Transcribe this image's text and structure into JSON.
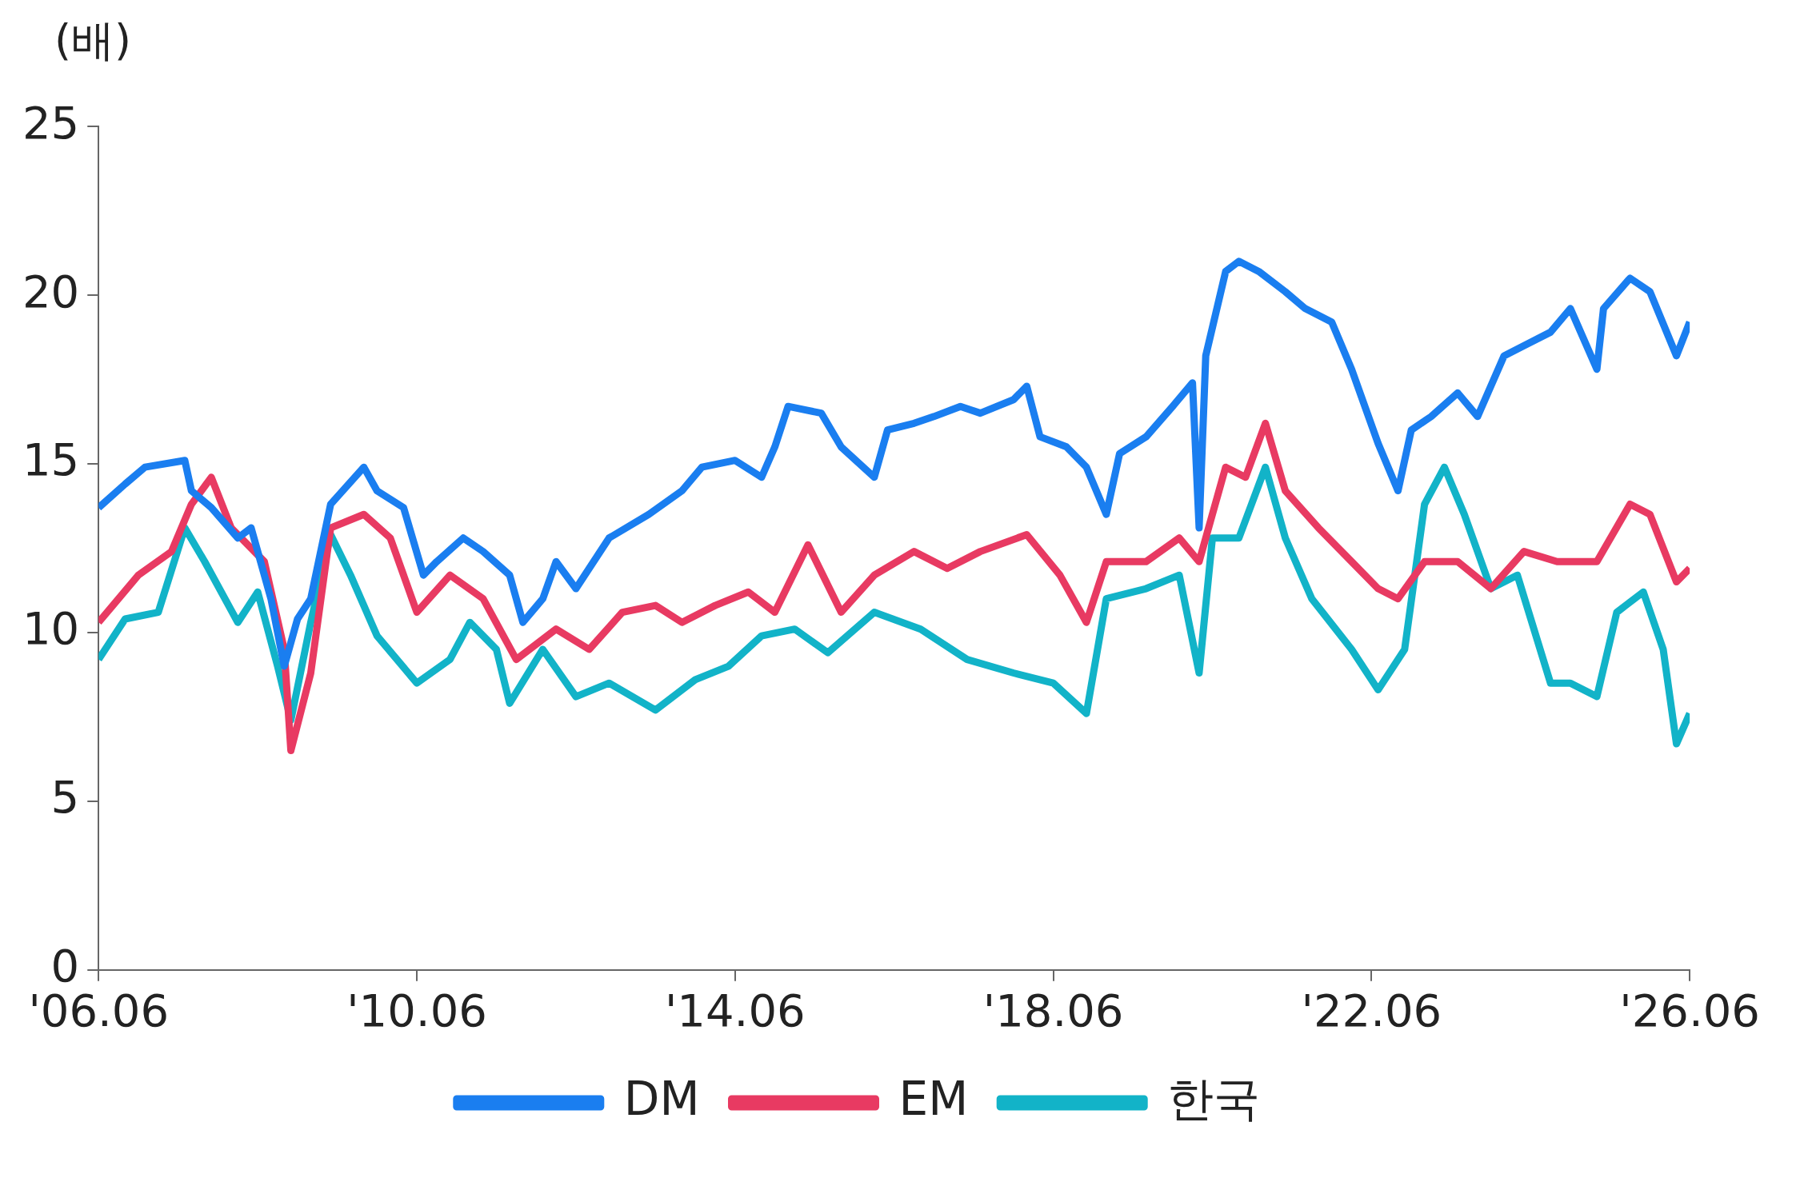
{
  "chart_data": {
    "type": "line",
    "ylabel": "(배)",
    "legend": "bottom",
    "grid": false,
    "line_style": "solid",
    "marker": "none",
    "xlim": [
      "2006-06",
      "2026-06"
    ],
    "xticks": [
      {
        "value": "2006-06",
        "label": "'06.06"
      },
      {
        "value": "2010-06",
        "label": "'10.06"
      },
      {
        "value": "2014-06",
        "label": "'14.06"
      },
      {
        "value": "2018-06",
        "label": "'18.06"
      },
      {
        "value": "2022-06",
        "label": "'22.06"
      },
      {
        "value": "2026-06",
        "label": "'26.06"
      }
    ],
    "ylim": [
      0,
      25
    ],
    "yticks": [
      0,
      5,
      10,
      15,
      20,
      25
    ],
    "series": [
      {
        "name": "DM",
        "color": "#1a7ef0",
        "x": [
          "2006-06",
          "2006-10",
          "2007-01",
          "2007-07",
          "2007-08",
          "2007-11",
          "2008-03",
          "2008-05",
          "2008-08",
          "2008-10",
          "2008-12",
          "2009-02",
          "2009-05",
          "2009-10",
          "2009-12",
          "2010-04",
          "2010-07",
          "2010-09",
          "2011-01",
          "2011-04",
          "2011-08",
          "2011-10",
          "2012-01",
          "2012-03",
          "2012-06",
          "2012-11",
          "2013-05",
          "2013-10",
          "2014-01",
          "2014-06",
          "2014-10",
          "2014-12",
          "2015-02",
          "2015-07",
          "2015-10",
          "2016-03",
          "2016-05",
          "2016-09",
          "2016-12",
          "2017-04",
          "2017-07",
          "2017-12",
          "2018-02",
          "2018-04",
          "2018-08",
          "2018-11",
          "2019-02",
          "2019-04",
          "2019-08",
          "2019-12",
          "2020-03",
          "2020-04",
          "2020-05",
          "2020-08",
          "2020-10",
          "2021-01",
          "2021-05",
          "2021-08",
          "2021-12",
          "2022-03",
          "2022-07",
          "2022-10",
          "2022-12",
          "2023-03",
          "2023-07",
          "2023-10",
          "2024-02",
          "2024-05",
          "2024-09",
          "2024-12",
          "2025-04",
          "2025-05",
          "2025-09",
          "2025-12",
          "2026-04",
          "2026-06"
        ],
        "values": [
          13.7,
          14.4,
          14.9,
          15.1,
          14.2,
          13.7,
          12.8,
          13.1,
          11.0,
          9.0,
          10.4,
          11.0,
          13.8,
          14.9,
          14.2,
          13.7,
          11.7,
          12.1,
          12.8,
          12.4,
          11.7,
          10.3,
          11.0,
          12.1,
          11.3,
          12.8,
          13.5,
          14.2,
          14.9,
          15.1,
          14.6,
          15.5,
          16.7,
          16.5,
          15.5,
          14.6,
          16.0,
          16.2,
          16.4,
          16.7,
          16.5,
          16.9,
          17.3,
          15.8,
          15.5,
          14.9,
          13.5,
          15.3,
          15.8,
          16.7,
          17.4,
          13.1,
          18.2,
          20.7,
          21.0,
          20.7,
          20.1,
          19.6,
          19.2,
          17.8,
          15.6,
          14.2,
          16.0,
          16.4,
          17.1,
          16.4,
          18.2,
          18.5,
          18.9,
          19.6,
          17.8,
          19.6,
          20.5,
          20.1,
          18.2,
          19.2
        ]
      },
      {
        "name": "EM",
        "color": "#e83a62",
        "x": [
          "2006-06",
          "2006-12",
          "2007-05",
          "2007-08",
          "2007-11",
          "2008-02",
          "2008-07",
          "2008-10",
          "2008-11",
          "2009-02",
          "2009-05",
          "2009-10",
          "2010-02",
          "2010-06",
          "2010-11",
          "2011-04",
          "2011-09",
          "2012-03",
          "2012-08",
          "2013-01",
          "2013-06",
          "2013-10",
          "2014-03",
          "2014-08",
          "2014-12",
          "2015-05",
          "2015-10",
          "2016-03",
          "2016-09",
          "2017-02",
          "2017-07",
          "2018-02",
          "2018-07",
          "2018-11",
          "2019-02",
          "2019-08",
          "2020-01",
          "2020-04",
          "2020-08",
          "2020-11",
          "2021-02",
          "2021-05",
          "2021-10",
          "2022-03",
          "2022-07",
          "2022-10",
          "2023-02",
          "2023-07",
          "2023-12",
          "2024-05",
          "2024-10",
          "2025-04",
          "2025-09",
          "2025-12",
          "2026-04",
          "2026-06"
        ],
        "values": [
          10.3,
          11.7,
          12.4,
          13.8,
          14.6,
          13.1,
          12.1,
          9.5,
          6.5,
          8.8,
          13.1,
          13.5,
          12.8,
          10.6,
          11.7,
          11.0,
          9.2,
          10.1,
          9.5,
          10.6,
          10.8,
          10.3,
          10.8,
          11.2,
          10.6,
          12.6,
          10.6,
          11.7,
          12.4,
          11.9,
          12.4,
          12.9,
          11.7,
          10.3,
          12.1,
          12.1,
          12.8,
          12.1,
          14.9,
          14.6,
          16.2,
          14.2,
          13.1,
          12.1,
          11.3,
          11.0,
          12.1,
          12.1,
          11.3,
          12.4,
          12.1,
          12.1,
          13.8,
          13.5,
          11.5,
          11.9
        ]
      },
      {
        "name": "한국",
        "color": "#12b3c8",
        "x": [
          "2006-06",
          "2006-10",
          "2007-03",
          "2007-07",
          "2007-10",
          "2008-03",
          "2008-06",
          "2008-09",
          "2008-11",
          "2009-02",
          "2009-05",
          "2009-08",
          "2009-12",
          "2010-06",
          "2010-11",
          "2011-02",
          "2011-06",
          "2011-08",
          "2012-01",
          "2012-06",
          "2012-11",
          "2013-06",
          "2013-12",
          "2014-05",
          "2014-10",
          "2015-03",
          "2015-08",
          "2016-03",
          "2016-10",
          "2017-05",
          "2017-12",
          "2018-06",
          "2018-11",
          "2019-02",
          "2019-08",
          "2020-01",
          "2020-04",
          "2020-06",
          "2020-10",
          "2021-02",
          "2021-05",
          "2021-09",
          "2022-03",
          "2022-07",
          "2022-11",
          "2023-02",
          "2023-05",
          "2023-08",
          "2023-12",
          "2024-04",
          "2024-09",
          "2024-12",
          "2025-04",
          "2025-07",
          "2025-11",
          "2026-02",
          "2026-04",
          "2026-06"
        ],
        "values": [
          9.2,
          10.4,
          10.6,
          13.1,
          12.1,
          10.3,
          11.2,
          9.0,
          7.4,
          10.3,
          12.9,
          11.7,
          9.9,
          8.5,
          9.2,
          10.3,
          9.5,
          7.9,
          9.5,
          8.1,
          8.5,
          7.7,
          8.6,
          9.0,
          9.9,
          10.1,
          9.4,
          10.6,
          10.1,
          9.2,
          8.8,
          8.5,
          7.6,
          11.0,
          11.3,
          11.7,
          8.8,
          12.8,
          12.8,
          14.9,
          12.8,
          11.0,
          9.5,
          8.3,
          9.5,
          13.8,
          14.9,
          13.5,
          11.3,
          11.7,
          8.5,
          8.5,
          8.1,
          10.6,
          11.2,
          9.5,
          6.7,
          7.6
        ]
      }
    ]
  }
}
